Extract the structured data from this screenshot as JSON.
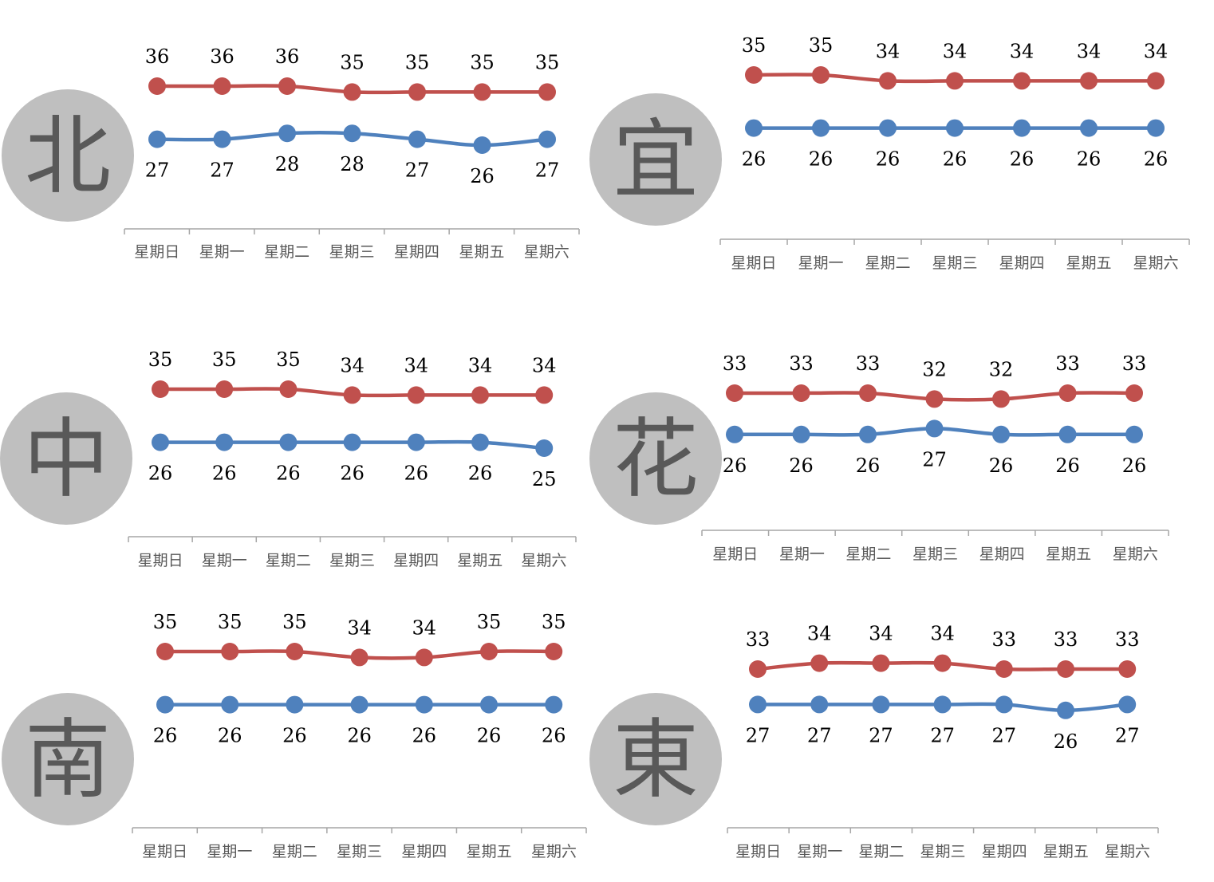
{
  "chart_data": [
    {
      "type": "line",
      "region": "北",
      "categories": [
        "星期日",
        "星期一",
        "星期二",
        "星期三",
        "星期四",
        "星期五",
        "星期六"
      ],
      "series": [
        {
          "values": [
            36,
            36,
            36,
            35,
            35,
            35,
            35
          ],
          "color": "#c0504d"
        },
        {
          "values": [
            27,
            27,
            28,
            28,
            27,
            26,
            27
          ],
          "color": "#4f81bd"
        }
      ],
      "title": "",
      "xlabel": "",
      "ylabel": "",
      "grid": false,
      "legend": "none"
    },
    {
      "type": "line",
      "region": "宜",
      "categories": [
        "星期日",
        "星期一",
        "星期二",
        "星期三",
        "星期四",
        "星期五",
        "星期六"
      ],
      "series": [
        {
          "values": [
            35,
            35,
            34,
            34,
            34,
            34,
            34
          ],
          "color": "#c0504d"
        },
        {
          "values": [
            26,
            26,
            26,
            26,
            26,
            26,
            26
          ],
          "color": "#4f81bd"
        }
      ],
      "title": "",
      "xlabel": "",
      "ylabel": "",
      "grid": false,
      "legend": "none"
    },
    {
      "type": "line",
      "region": "中",
      "categories": [
        "星期日",
        "星期一",
        "星期二",
        "星期三",
        "星期四",
        "星期五",
        "星期六"
      ],
      "series": [
        {
          "values": [
            35,
            35,
            35,
            34,
            34,
            34,
            34
          ],
          "color": "#c0504d"
        },
        {
          "values": [
            26,
            26,
            26,
            26,
            26,
            26,
            25
          ],
          "color": "#4f81bd"
        }
      ],
      "title": "",
      "xlabel": "",
      "ylabel": "",
      "grid": false,
      "legend": "none"
    },
    {
      "type": "line",
      "region": "花",
      "categories": [
        "星期日",
        "星期一",
        "星期二",
        "星期三",
        "星期四",
        "星期五",
        "星期六"
      ],
      "series": [
        {
          "values": [
            33,
            33,
            33,
            32,
            32,
            33,
            33
          ],
          "color": "#c0504d"
        },
        {
          "values": [
            26,
            26,
            26,
            27,
            26,
            26,
            26
          ],
          "color": "#4f81bd"
        }
      ],
      "title": "",
      "xlabel": "",
      "ylabel": "",
      "grid": false,
      "legend": "none"
    },
    {
      "type": "line",
      "region": "南",
      "categories": [
        "星期日",
        "星期一",
        "星期二",
        "星期三",
        "星期四",
        "星期五",
        "星期六"
      ],
      "series": [
        {
          "values": [
            35,
            35,
            35,
            34,
            34,
            35,
            35
          ],
          "color": "#c0504d"
        },
        {
          "values": [
            26,
            26,
            26,
            26,
            26,
            26,
            26
          ],
          "color": "#4f81bd"
        }
      ],
      "title": "",
      "xlabel": "",
      "ylabel": "",
      "grid": false,
      "legend": "none"
    },
    {
      "type": "line",
      "region": "東",
      "categories": [
        "星期日",
        "星期一",
        "星期二",
        "星期三",
        "星期四",
        "星期五",
        "星期六"
      ],
      "series": [
        {
          "values": [
            33,
            34,
            34,
            34,
            33,
            33,
            33
          ],
          "color": "#c0504d"
        },
        {
          "values": [
            27,
            27,
            27,
            27,
            27,
            26,
            27
          ],
          "color": "#4f81bd"
        }
      ],
      "title": "",
      "xlabel": "",
      "ylabel": "",
      "grid": false,
      "legend": "none"
    }
  ]
}
